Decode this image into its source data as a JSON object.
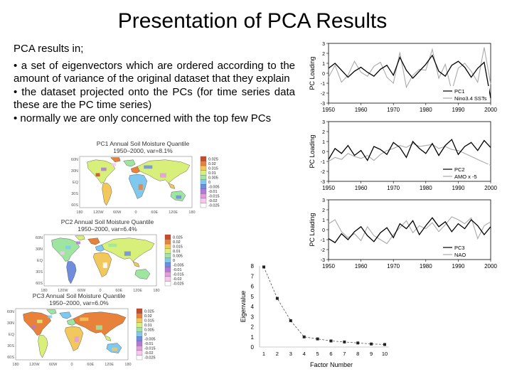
{
  "slide": {
    "title": "Presentation of PCA Results",
    "intro": "PCA results in;",
    "bullets": [
      "• a set of eigenvectors which are ordered according to the amount of variance of the original dataset that they explain",
      "• the dataset projected onto the PCs (for time series data these are the PC time series)",
      "• normally we are only concerned with the top few PCs"
    ]
  },
  "maps": [
    {
      "title": "PC1 Annual Soil Moisture Quantile",
      "subtitle": "1950–2000, var=8.1%",
      "scale": [
        "0.025",
        "0.02",
        "0.015",
        "0.01",
        "0.005",
        "0",
        "-0.005",
        "-0.01",
        "-0.015",
        "-0.02",
        "-0.025"
      ]
    },
    {
      "title": "PC2 Annual Soil Moisture Quantile",
      "subtitle": "1950–2000, var=6.4%",
      "scale": [
        "0.025",
        "0.02",
        "0.015",
        "0.01",
        "0.005",
        "0",
        "-0.005",
        "-0.01",
        "-0.015",
        "-0.02",
        "-0.025"
      ]
    },
    {
      "title": "PC3 Annual Soil Moisture Quantile",
      "subtitle": "1950–2000, var=6.0%",
      "scale": [
        "0.025",
        "0.02",
        "0.015",
        "0.01",
        "0.005",
        "0",
        "-0.005",
        "-0.01",
        "-0.015",
        "-0.02",
        "-0.025"
      ]
    }
  ],
  "map_axes": {
    "lon": [
      "180",
      "120W",
      "60W",
      "0",
      "60E",
      "120E",
      "180"
    ],
    "lat": [
      "60N",
      "30N",
      "EQ",
      "30S",
      "60S"
    ]
  },
  "scale_colors": [
    "#ffffff",
    "#f6c8f0",
    "#e49be0",
    "#b07ad6",
    "#6f8ddc",
    "#7fc9f0",
    "#9ee6a0",
    "#d8f07a",
    "#f2c85c",
    "#e8823a",
    "#c74a2a"
  ],
  "chart_data": [
    {
      "type": "line",
      "ylabel": "PC Loading",
      "x": [
        1950,
        1952,
        1954,
        1956,
        1958,
        1960,
        1962,
        1964,
        1966,
        1968,
        1970,
        1972,
        1974,
        1976,
        1978,
        1980,
        1982,
        1984,
        1986,
        1988,
        1990,
        1992,
        1994,
        1996,
        1998,
        2000
      ],
      "xticks": [
        "1950",
        "1960",
        "1970",
        "1980",
        "1990",
        "2000"
      ],
      "ylim": [
        -3,
        3
      ],
      "yticks": [
        "3",
        "2",
        "1",
        "0",
        "-1",
        "-2",
        "-3"
      ],
      "legend_position": "bottom-right",
      "series": [
        {
          "name": "PC1",
          "color": "#000000",
          "values": [
            0.5,
            1.0,
            0.3,
            -0.4,
            0.2,
            0.6,
            0.1,
            -0.3,
            0.4,
            0.8,
            -0.2,
            1.6,
            0.3,
            -0.5,
            0.2,
            0.9,
            1.8,
            0.2,
            -0.3,
            0.8,
            1.2,
            0.6,
            -0.4,
            0.5,
            1.1,
            -2.5
          ]
        },
        {
          "name": "Nino3.4 SSTs",
          "color": "#aaaaaa",
          "values": [
            -0.4,
            0.8,
            -0.9,
            -0.2,
            1.2,
            0.1,
            -0.3,
            0.7,
            1.1,
            -0.4,
            -1.0,
            2.1,
            -1.4,
            -0.2,
            0.4,
            0.3,
            2.4,
            -0.5,
            0.9,
            -1.8,
            0.5,
            1.0,
            0.2,
            -0.9,
            2.6,
            -1.1
          ]
        }
      ]
    },
    {
      "type": "line",
      "ylabel": "PC Loading",
      "x": [
        1950,
        1952,
        1954,
        1956,
        1958,
        1960,
        1962,
        1964,
        1966,
        1968,
        1970,
        1972,
        1974,
        1976,
        1978,
        1980,
        1982,
        1984,
        1986,
        1988,
        1990,
        1992,
        1994,
        1996,
        1998,
        2000
      ],
      "xticks": [
        "1950",
        "1960",
        "1970",
        "1980",
        "1990",
        "2000"
      ],
      "ylim": [
        -3,
        3
      ],
      "yticks": [
        "3",
        "2",
        "1",
        "0",
        "-1",
        "-2",
        "-3"
      ],
      "legend_position": "bottom-right",
      "series": [
        {
          "name": "PC2",
          "color": "#000000",
          "values": [
            -0.8,
            0.3,
            -0.2,
            0.6,
            -0.4,
            0.1,
            -0.9,
            0.5,
            0.2,
            -0.3,
            0.9,
            0.4,
            -0.6,
            1.0,
            0.3,
            -0.2,
            0.8,
            -0.4,
            0.6,
            1.2,
            -0.3,
            0.5,
            0.9,
            0.1,
            1.1,
            0.4
          ]
        },
        {
          "name": "AMO x -5",
          "color": "#aaaaaa",
          "values": [
            -1.0,
            -0.6,
            -0.8,
            -0.2,
            -0.5,
            -0.7,
            -0.4,
            -0.9,
            -0.3,
            0.1,
            0.3,
            0.6,
            0.4,
            0.8,
            0.5,
            0.6,
            0.7,
            0.3,
            0.5,
            0.2,
            0.1,
            -0.2,
            -0.5,
            -0.8,
            -1.1,
            -1.4
          ]
        }
      ]
    },
    {
      "type": "line",
      "ylabel": "PC Loading",
      "x": [
        1950,
        1952,
        1954,
        1956,
        1958,
        1960,
        1962,
        1964,
        1966,
        1968,
        1970,
        1972,
        1974,
        1976,
        1978,
        1980,
        1982,
        1984,
        1986,
        1988,
        1990,
        1992,
        1994,
        1996,
        1998,
        2000
      ],
      "xticks": [
        "1950",
        "1960",
        "1970",
        "1980",
        "1990",
        "2000"
      ],
      "ylim": [
        -3,
        3
      ],
      "yticks": [
        "3",
        "2",
        "1",
        "0",
        "-1",
        "-2",
        "-3"
      ],
      "legend_position": "bottom-right",
      "series": [
        {
          "name": "PC3",
          "color": "#000000",
          "values": [
            -0.9,
            -1.3,
            -0.4,
            -1.0,
            -0.2,
            0.3,
            -0.6,
            -1.2,
            -0.3,
            0.2,
            -0.8,
            0.6,
            0.1,
            0.9,
            -0.5,
            0.4,
            1.2,
            0.3,
            0.8,
            -0.2,
            0.6,
            0.1,
            1.0,
            0.4,
            -0.5,
            0.3
          ]
        },
        {
          "name": "NAO",
          "color": "#aaaaaa",
          "values": [
            0.6,
            1.0,
            -0.2,
            -0.8,
            -0.4,
            -1.1,
            0.3,
            -0.6,
            -1.0,
            -1.4,
            -0.5,
            0.2,
            0.9,
            -0.3,
            0.4,
            0.1,
            0.7,
            -0.2,
            0.5,
            1.3,
            1.0,
            0.6,
            1.2,
            -0.9,
            0.4,
            0.8
          ]
        }
      ]
    },
    {
      "type": "line",
      "title": "",
      "xlabel": "Factor Number",
      "ylabel": "Eigenvalue",
      "x": [
        1,
        2,
        3,
        4,
        5,
        6,
        7,
        8,
        9,
        10
      ],
      "values": [
        7.9,
        4.8,
        2.6,
        1.0,
        0.8,
        0.6,
        0.5,
        0.4,
        0.3,
        0.25
      ],
      "ylim": [
        0,
        8
      ],
      "yticks": [
        "0",
        "1",
        "2",
        "3",
        "4",
        "5",
        "6",
        "7",
        "8"
      ],
      "xticks": [
        "1",
        "2",
        "3",
        "4",
        "5",
        "6",
        "7",
        "8",
        "9",
        "10"
      ]
    }
  ]
}
